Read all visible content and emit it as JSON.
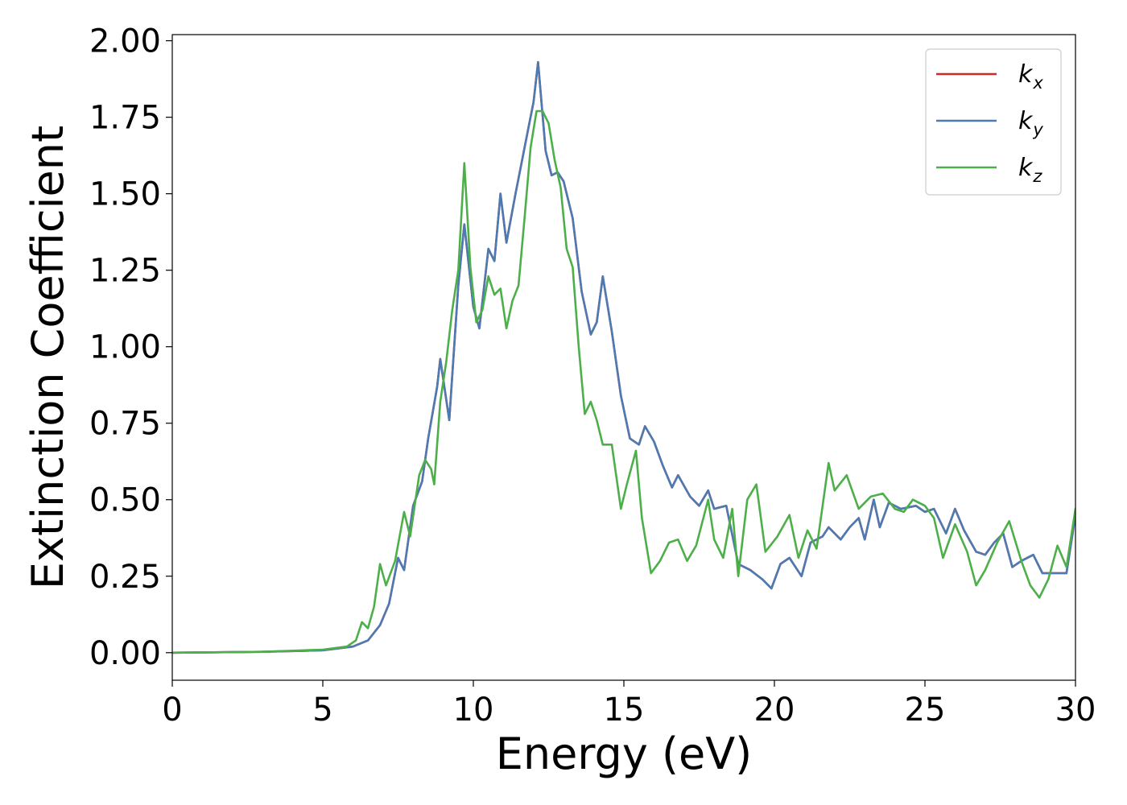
{
  "chart_data": {
    "type": "line",
    "title": "",
    "xlabel": "Energy (eV)",
    "ylabel": "Extinction Coefficient",
    "xlim": [
      0,
      30
    ],
    "ylim": [
      -0.09,
      2.02
    ],
    "xticks": [
      0,
      5,
      10,
      15,
      20,
      25,
      30
    ],
    "xtick_labels": [
      "0",
      "5",
      "10",
      "15",
      "20",
      "25",
      "30"
    ],
    "yticks": [
      0.0,
      0.25,
      0.5,
      0.75,
      1.0,
      1.25,
      1.5,
      1.75,
      2.0
    ],
    "ytick_labels": [
      "0.00",
      "0.25",
      "0.50",
      "0.75",
      "1.00",
      "1.25",
      "1.50",
      "1.75",
      "2.00"
    ],
    "grid": false,
    "legend_position": "top-right",
    "series": [
      {
        "name": "k_x",
        "legend_base": "k",
        "legend_sub": "x",
        "color": "#d62728",
        "points": [
          [
            0,
            0.0
          ],
          [
            3,
            0.003
          ],
          [
            5,
            0.008
          ],
          [
            6,
            0.02
          ],
          [
            6.5,
            0.04
          ],
          [
            6.9,
            0.09
          ],
          [
            7.2,
            0.16
          ],
          [
            7.5,
            0.31
          ],
          [
            7.7,
            0.27
          ],
          [
            8.0,
            0.48
          ],
          [
            8.3,
            0.56
          ],
          [
            8.5,
            0.7
          ],
          [
            8.8,
            0.87
          ],
          [
            8.9,
            0.96
          ],
          [
            9.2,
            0.76
          ],
          [
            9.5,
            1.2
          ],
          [
            9.7,
            1.4
          ],
          [
            10.0,
            1.13
          ],
          [
            10.2,
            1.06
          ],
          [
            10.5,
            1.32
          ],
          [
            10.7,
            1.28
          ],
          [
            10.9,
            1.5
          ],
          [
            11.1,
            1.34
          ],
          [
            11.4,
            1.5
          ],
          [
            11.8,
            1.7
          ],
          [
            12.0,
            1.8
          ],
          [
            12.15,
            1.93
          ],
          [
            12.4,
            1.64
          ],
          [
            12.6,
            1.56
          ],
          [
            12.8,
            1.57
          ],
          [
            13.0,
            1.54
          ],
          [
            13.3,
            1.42
          ],
          [
            13.6,
            1.18
          ],
          [
            13.9,
            1.04
          ],
          [
            14.1,
            1.08
          ],
          [
            14.3,
            1.23
          ],
          [
            14.6,
            1.05
          ],
          [
            14.9,
            0.84
          ],
          [
            15.2,
            0.7
          ],
          [
            15.5,
            0.68
          ],
          [
            15.7,
            0.74
          ],
          [
            16.0,
            0.69
          ],
          [
            16.3,
            0.61
          ],
          [
            16.6,
            0.54
          ],
          [
            16.8,
            0.58
          ],
          [
            17.2,
            0.51
          ],
          [
            17.5,
            0.48
          ],
          [
            17.8,
            0.53
          ],
          [
            18.0,
            0.47
          ],
          [
            18.4,
            0.48
          ],
          [
            18.8,
            0.29
          ],
          [
            19.2,
            0.27
          ],
          [
            19.6,
            0.24
          ],
          [
            19.9,
            0.21
          ],
          [
            20.2,
            0.29
          ],
          [
            20.5,
            0.31
          ],
          [
            20.9,
            0.25
          ],
          [
            21.2,
            0.36
          ],
          [
            21.6,
            0.38
          ],
          [
            21.8,
            0.41
          ],
          [
            22.2,
            0.37
          ],
          [
            22.5,
            0.41
          ],
          [
            22.8,
            0.44
          ],
          [
            23.0,
            0.37
          ],
          [
            23.3,
            0.5
          ],
          [
            23.5,
            0.41
          ],
          [
            23.8,
            0.49
          ],
          [
            24.2,
            0.47
          ],
          [
            24.7,
            0.48
          ],
          [
            25.0,
            0.46
          ],
          [
            25.3,
            0.47
          ],
          [
            25.7,
            0.39
          ],
          [
            26.0,
            0.47
          ],
          [
            26.3,
            0.4
          ],
          [
            26.7,
            0.33
          ],
          [
            27.0,
            0.32
          ],
          [
            27.3,
            0.36
          ],
          [
            27.6,
            0.39
          ],
          [
            27.9,
            0.28
          ],
          [
            28.2,
            0.3
          ],
          [
            28.6,
            0.32
          ],
          [
            28.9,
            0.26
          ],
          [
            29.3,
            0.26
          ],
          [
            29.7,
            0.26
          ],
          [
            30.0,
            0.45
          ]
        ]
      },
      {
        "name": "k_y",
        "legend_base": "k",
        "legend_sub": "y",
        "color": "#4c7ab3",
        "points": [
          [
            0,
            0.0
          ],
          [
            3,
            0.003
          ],
          [
            5,
            0.008
          ],
          [
            6,
            0.02
          ],
          [
            6.5,
            0.04
          ],
          [
            6.9,
            0.09
          ],
          [
            7.2,
            0.16
          ],
          [
            7.5,
            0.31
          ],
          [
            7.7,
            0.27
          ],
          [
            8.0,
            0.48
          ],
          [
            8.3,
            0.56
          ],
          [
            8.5,
            0.7
          ],
          [
            8.8,
            0.87
          ],
          [
            8.9,
            0.96
          ],
          [
            9.2,
            0.76
          ],
          [
            9.5,
            1.2
          ],
          [
            9.7,
            1.4
          ],
          [
            10.0,
            1.13
          ],
          [
            10.2,
            1.06
          ],
          [
            10.5,
            1.32
          ],
          [
            10.7,
            1.28
          ],
          [
            10.9,
            1.5
          ],
          [
            11.1,
            1.34
          ],
          [
            11.4,
            1.5
          ],
          [
            11.8,
            1.7
          ],
          [
            12.0,
            1.8
          ],
          [
            12.15,
            1.93
          ],
          [
            12.4,
            1.64
          ],
          [
            12.6,
            1.56
          ],
          [
            12.8,
            1.57
          ],
          [
            13.0,
            1.54
          ],
          [
            13.3,
            1.42
          ],
          [
            13.6,
            1.18
          ],
          [
            13.9,
            1.04
          ],
          [
            14.1,
            1.08
          ],
          [
            14.3,
            1.23
          ],
          [
            14.6,
            1.05
          ],
          [
            14.9,
            0.84
          ],
          [
            15.2,
            0.7
          ],
          [
            15.5,
            0.68
          ],
          [
            15.7,
            0.74
          ],
          [
            16.0,
            0.69
          ],
          [
            16.3,
            0.61
          ],
          [
            16.6,
            0.54
          ],
          [
            16.8,
            0.58
          ],
          [
            17.2,
            0.51
          ],
          [
            17.5,
            0.48
          ],
          [
            17.8,
            0.53
          ],
          [
            18.0,
            0.47
          ],
          [
            18.4,
            0.48
          ],
          [
            18.8,
            0.29
          ],
          [
            19.2,
            0.27
          ],
          [
            19.6,
            0.24
          ],
          [
            19.9,
            0.21
          ],
          [
            20.2,
            0.29
          ],
          [
            20.5,
            0.31
          ],
          [
            20.9,
            0.25
          ],
          [
            21.2,
            0.36
          ],
          [
            21.6,
            0.38
          ],
          [
            21.8,
            0.41
          ],
          [
            22.2,
            0.37
          ],
          [
            22.5,
            0.41
          ],
          [
            22.8,
            0.44
          ],
          [
            23.0,
            0.37
          ],
          [
            23.3,
            0.5
          ],
          [
            23.5,
            0.41
          ],
          [
            23.8,
            0.49
          ],
          [
            24.2,
            0.47
          ],
          [
            24.7,
            0.48
          ],
          [
            25.0,
            0.46
          ],
          [
            25.3,
            0.47
          ],
          [
            25.7,
            0.39
          ],
          [
            26.0,
            0.47
          ],
          [
            26.3,
            0.4
          ],
          [
            26.7,
            0.33
          ],
          [
            27.0,
            0.32
          ],
          [
            27.3,
            0.36
          ],
          [
            27.6,
            0.39
          ],
          [
            27.9,
            0.28
          ],
          [
            28.2,
            0.3
          ],
          [
            28.6,
            0.32
          ],
          [
            28.9,
            0.26
          ],
          [
            29.3,
            0.26
          ],
          [
            29.7,
            0.26
          ],
          [
            30.0,
            0.45
          ]
        ]
      },
      {
        "name": "k_z",
        "legend_base": "k",
        "legend_sub": "z",
        "color": "#4daf4a",
        "points": [
          [
            0,
            0.0
          ],
          [
            3,
            0.003
          ],
          [
            5,
            0.01
          ],
          [
            5.8,
            0.02
          ],
          [
            6.1,
            0.04
          ],
          [
            6.3,
            0.1
          ],
          [
            6.5,
            0.08
          ],
          [
            6.7,
            0.15
          ],
          [
            6.9,
            0.29
          ],
          [
            7.1,
            0.22
          ],
          [
            7.4,
            0.3
          ],
          [
            7.7,
            0.46
          ],
          [
            7.9,
            0.38
          ],
          [
            8.2,
            0.58
          ],
          [
            8.4,
            0.63
          ],
          [
            8.6,
            0.6
          ],
          [
            8.7,
            0.55
          ],
          [
            8.9,
            0.82
          ],
          [
            9.1,
            0.95
          ],
          [
            9.3,
            1.12
          ],
          [
            9.5,
            1.25
          ],
          [
            9.7,
            1.6
          ],
          [
            9.9,
            1.26
          ],
          [
            10.1,
            1.08
          ],
          [
            10.3,
            1.12
          ],
          [
            10.5,
            1.23
          ],
          [
            10.7,
            1.17
          ],
          [
            10.9,
            1.19
          ],
          [
            11.1,
            1.06
          ],
          [
            11.3,
            1.15
          ],
          [
            11.5,
            1.2
          ],
          [
            11.7,
            1.42
          ],
          [
            11.9,
            1.65
          ],
          [
            12.1,
            1.77
          ],
          [
            12.3,
            1.77
          ],
          [
            12.5,
            1.73
          ],
          [
            12.7,
            1.61
          ],
          [
            12.9,
            1.52
          ],
          [
            13.1,
            1.32
          ],
          [
            13.3,
            1.26
          ],
          [
            13.5,
            1.0
          ],
          [
            13.7,
            0.78
          ],
          [
            13.9,
            0.82
          ],
          [
            14.1,
            0.76
          ],
          [
            14.3,
            0.68
          ],
          [
            14.6,
            0.68
          ],
          [
            14.9,
            0.47
          ],
          [
            15.1,
            0.55
          ],
          [
            15.4,
            0.66
          ],
          [
            15.6,
            0.44
          ],
          [
            15.9,
            0.26
          ],
          [
            16.2,
            0.3
          ],
          [
            16.5,
            0.36
          ],
          [
            16.8,
            0.37
          ],
          [
            17.1,
            0.3
          ],
          [
            17.4,
            0.35
          ],
          [
            17.8,
            0.5
          ],
          [
            18.0,
            0.37
          ],
          [
            18.3,
            0.31
          ],
          [
            18.6,
            0.47
          ],
          [
            18.8,
            0.25
          ],
          [
            19.1,
            0.5
          ],
          [
            19.4,
            0.55
          ],
          [
            19.7,
            0.33
          ],
          [
            20.1,
            0.38
          ],
          [
            20.5,
            0.45
          ],
          [
            20.8,
            0.31
          ],
          [
            21.1,
            0.4
          ],
          [
            21.4,
            0.34
          ],
          [
            21.8,
            0.62
          ],
          [
            22.0,
            0.53
          ],
          [
            22.4,
            0.58
          ],
          [
            22.8,
            0.47
          ],
          [
            23.2,
            0.51
          ],
          [
            23.6,
            0.52
          ],
          [
            24.0,
            0.47
          ],
          [
            24.3,
            0.46
          ],
          [
            24.6,
            0.5
          ],
          [
            25.0,
            0.48
          ],
          [
            25.3,
            0.44
          ],
          [
            25.6,
            0.31
          ],
          [
            26.0,
            0.42
          ],
          [
            26.4,
            0.33
          ],
          [
            26.7,
            0.22
          ],
          [
            27.0,
            0.27
          ],
          [
            27.4,
            0.36
          ],
          [
            27.8,
            0.43
          ],
          [
            28.2,
            0.3
          ],
          [
            28.5,
            0.22
          ],
          [
            28.8,
            0.18
          ],
          [
            29.1,
            0.24
          ],
          [
            29.4,
            0.35
          ],
          [
            29.7,
            0.28
          ],
          [
            30.0,
            0.47
          ]
        ]
      }
    ]
  }
}
